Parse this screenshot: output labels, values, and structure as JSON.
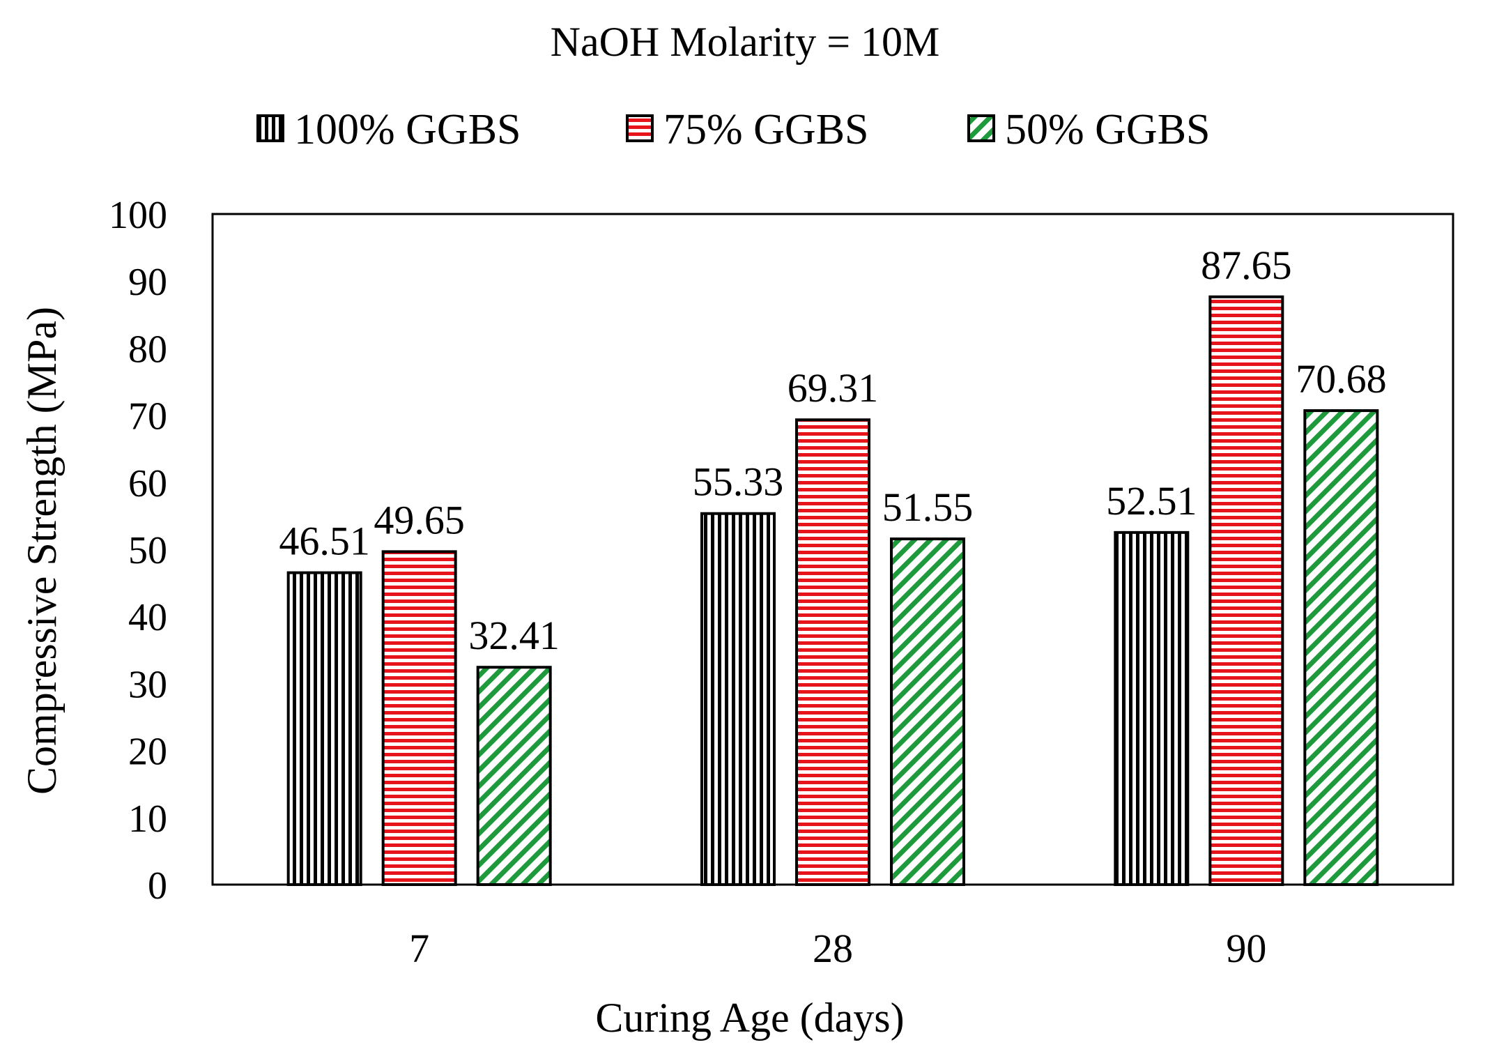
{
  "chart_data": {
    "type": "bar",
    "title": "NaOH Molarity = 10M",
    "xlabel": "Curing Age (days)",
    "ylabel": "Compressive Strength (MPa)",
    "categories": [
      "7",
      "28",
      "90"
    ],
    "ylim": [
      0,
      100
    ],
    "yticks": [
      0,
      10,
      20,
      30,
      40,
      50,
      60,
      70,
      80,
      90,
      100
    ],
    "grid": false,
    "legend_position": "top-center",
    "series": [
      {
        "name": "100% GGBS",
        "values": [
          46.51,
          55.33,
          52.51
        ],
        "labels": [
          "46.51",
          "55.33",
          "52.51"
        ],
        "color": "#000000",
        "pattern": "vertical-lines"
      },
      {
        "name": "75% GGBS",
        "values": [
          49.65,
          69.31,
          87.65
        ],
        "labels": [
          "49.65",
          "69.31",
          "87.65"
        ],
        "color": "#e8141b",
        "pattern": "horizontal-lines"
      },
      {
        "name": "50% GGBS",
        "values": [
          32.41,
          51.55,
          70.68
        ],
        "labels": [
          "32.41",
          "51.55",
          "70.68"
        ],
        "color": "#1e9a3c",
        "pattern": "diagonal-lines"
      }
    ]
  }
}
